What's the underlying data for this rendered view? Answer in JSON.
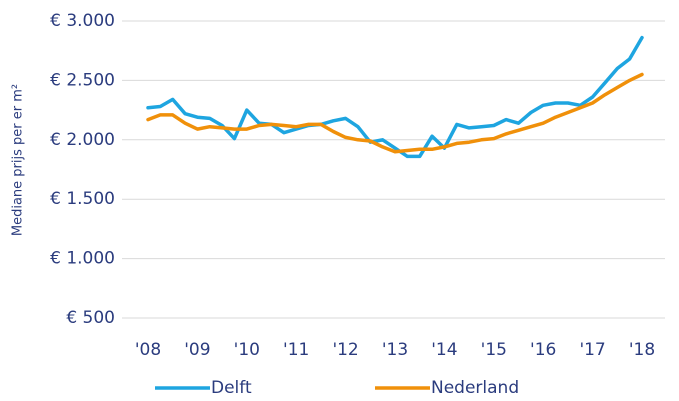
{
  "chart_data": {
    "type": "line",
    "y_label": "Mediane prijs per er m²",
    "categories": [
      "'08",
      null,
      null,
      null,
      "'09",
      null,
      null,
      null,
      "'10",
      null,
      null,
      null,
      "'11",
      null,
      null,
      null,
      "'12",
      null,
      null,
      null,
      "'13",
      null,
      null,
      null,
      "'14",
      null,
      null,
      null,
      "'15",
      null,
      null,
      null,
      "'16",
      null,
      null,
      null,
      "'17",
      null,
      null,
      null,
      "'18"
    ],
    "series": [
      {
        "name": "Delft",
        "color": "#1ea5e0",
        "values": [
          2270,
          2280,
          2340,
          2220,
          2190,
          2180,
          2120,
          2010,
          2250,
          2140,
          2130,
          2060,
          2090,
          2120,
          2130,
          2160,
          2180,
          2110,
          1980,
          2000,
          1930,
          1860,
          1860,
          2030,
          1930,
          2130,
          2100,
          2110,
          2120,
          2170,
          2140,
          2230,
          2290,
          2310,
          2310,
          2290,
          2360,
          2480,
          2600,
          2680,
          2860
        ]
      },
      {
        "name": "Nederland",
        "color": "#f0900a",
        "values": [
          2170,
          2210,
          2210,
          2140,
          2090,
          2110,
          2100,
          2090,
          2090,
          2120,
          2130,
          2120,
          2110,
          2130,
          2130,
          2070,
          2020,
          2000,
          1990,
          1940,
          1900,
          1910,
          1920,
          1920,
          1940,
          1970,
          1980,
          2000,
          2010,
          2050,
          2080,
          2110,
          2140,
          2190,
          2230,
          2270,
          2310,
          2380,
          2440,
          2500,
          2550
        ]
      }
    ],
    "ylim": [
      500,
      3000
    ],
    "yticks": [
      {
        "value": 500,
        "label": "€ 500"
      },
      {
        "value": 1000,
        "label": "€ 1.000"
      },
      {
        "value": 1500,
        "label": "€ 1.500"
      },
      {
        "value": 2000,
        "label": "€ 2.000"
      },
      {
        "value": 2500,
        "label": "€ 2.500"
      },
      {
        "value": 3000,
        "label": "€ 3.000"
      }
    ],
    "grid": true
  }
}
